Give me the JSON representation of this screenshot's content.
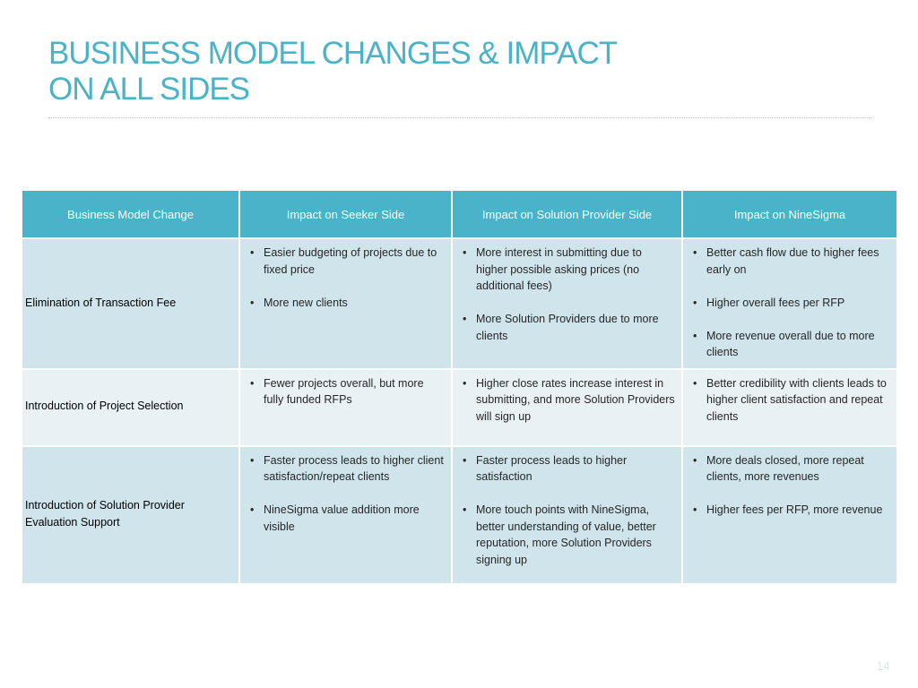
{
  "title": {
    "line1": "BUSINESS MODEL CHANGES & IMPACT",
    "line2": "ON ALL SIDES"
  },
  "table": {
    "headers": [
      "Business Model Change",
      "Impact on Seeker Side",
      "Impact on Solution Provider Side",
      "Impact on NineSigma"
    ],
    "rows": [
      {
        "change": "Elimination of Transaction Fee",
        "seeker": [
          "Easier budgeting of projects due to fixed price",
          "More new clients"
        ],
        "provider": [
          "More interest in submitting due to higher possible asking prices (no additional fees)",
          "More Solution Providers due to more clients"
        ],
        "ninesigma": [
          "Better cash flow due to higher fees early on",
          "Higher overall fees per RFP",
          "More revenue overall due to more clients"
        ]
      },
      {
        "change": "Introduction of Project Selection",
        "seeker": [
          "Fewer projects overall, but more fully funded RFPs"
        ],
        "provider": [
          "Higher close rates increase interest in submitting, and more Solution Providers will sign up"
        ],
        "ninesigma": [
          "Better credibility with clients leads to higher client satisfaction and repeat clients"
        ]
      },
      {
        "change": "Introduction of Solution Provider Evaluation Support",
        "seeker": [
          "Faster process leads to higher client satisfaction/repeat clients",
          "NineSigma value addition more visible"
        ],
        "provider": [
          "Faster process leads to higher satisfaction",
          "More touch points with NineSigma, better understanding of value, better reputation, more Solution Providers signing up"
        ],
        "ninesigma": [
          "More deals closed, more repeat clients, more revenues",
          "Higher fees per RFP, more revenue"
        ]
      }
    ]
  },
  "page_number": "14",
  "colors": {
    "accent": "#4ab3c9",
    "row_fill": "#d0e4ec",
    "row_fill_alt": "#e9f1f5"
  }
}
